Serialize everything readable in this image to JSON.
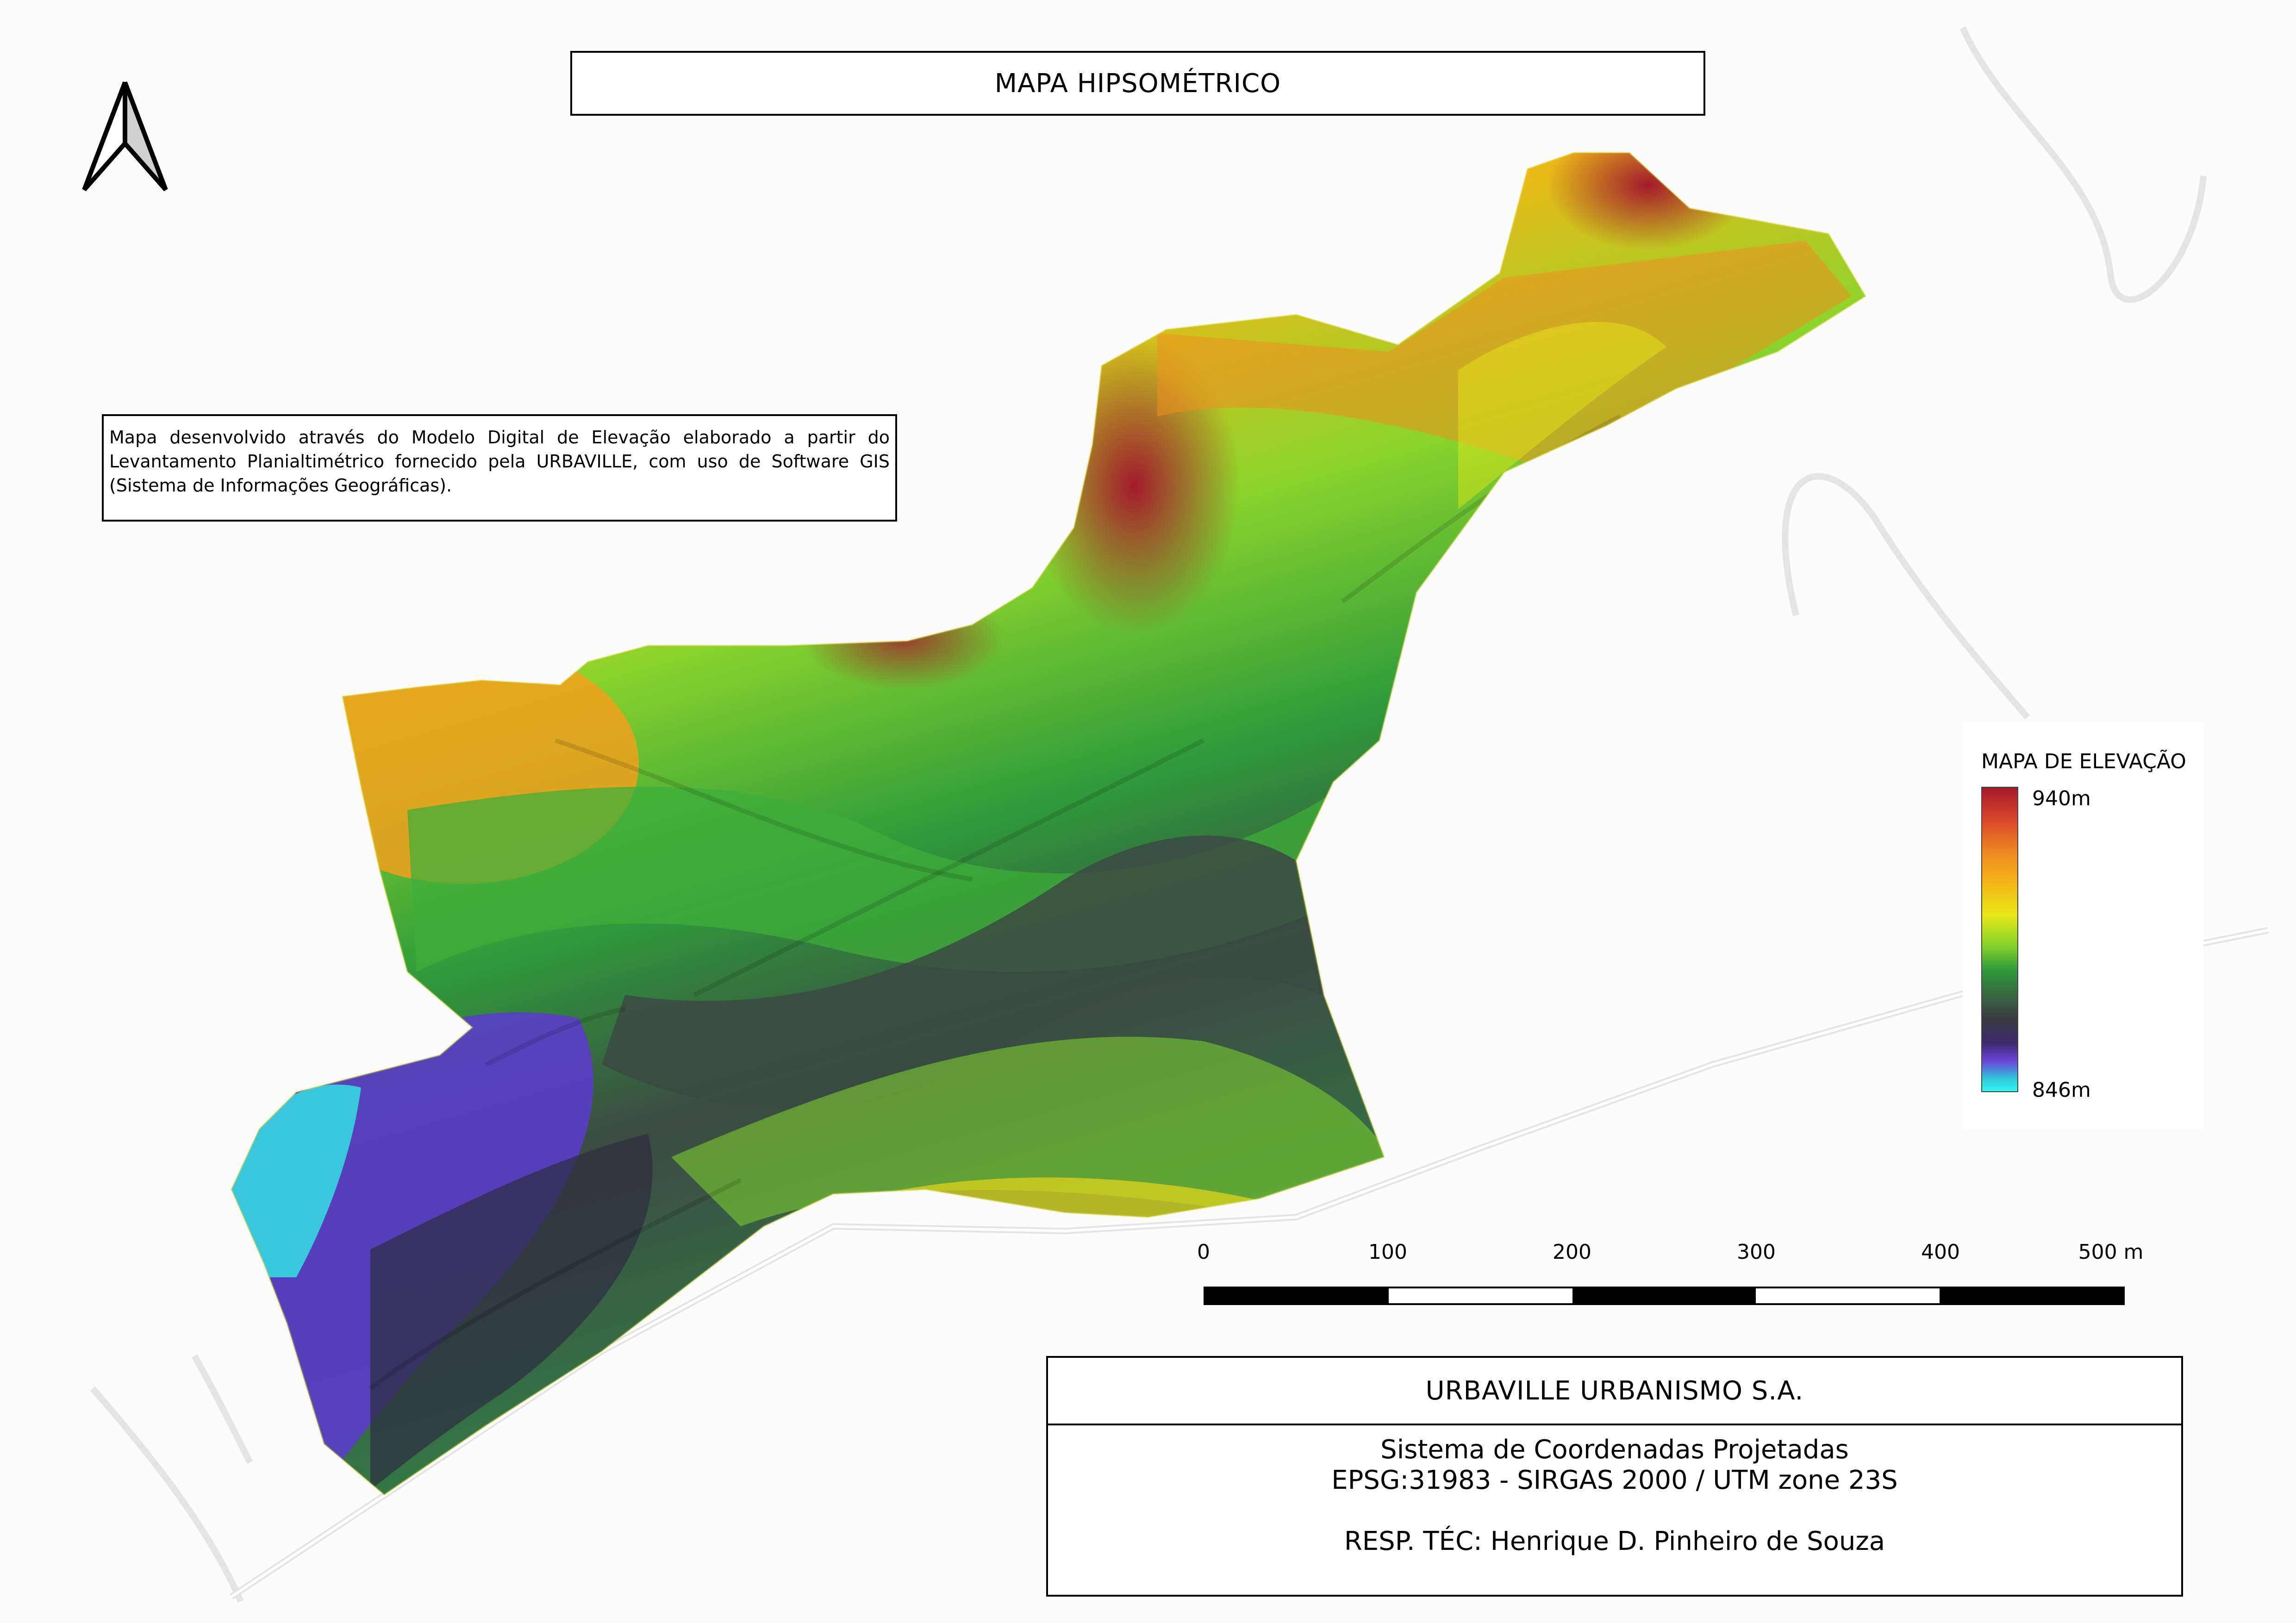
{
  "title": "MAPA HIPSOMÉTRICO",
  "description": "Mapa desenvolvido através do Modelo Digital de Elevação elaborado a partir do Levantamento Planialtimétrico fornecido pela URBAVILLE, com uso de Software GIS (Sistema de Informações Geográficas).",
  "legend": {
    "title": "MAPA DE ELEVAÇÃO",
    "max_label": "940m",
    "min_label": "846m",
    "ramp_colors": [
      "#a31a2c",
      "#f08c22",
      "#e8e818",
      "#2e9a3a",
      "#3a3a3e",
      "#6b44d8",
      "#35f3f5"
    ]
  },
  "scale_bar": {
    "labels": [
      "0",
      "100",
      "200",
      "300",
      "400",
      "500 m"
    ],
    "segments": 5
  },
  "company": {
    "name": "URBAVILLE URBANISMO S.A.",
    "crs_line1": "Sistema de Coordenadas Projetadas",
    "crs_line2": "EPSG:31983 - SIRGAS 2000 / UTM zone 23S",
    "responsible": "RESP. TÉC: Henrique D. Pinheiro de Souza"
  },
  "icons": {
    "north_arrow": "north-arrow-icon"
  }
}
